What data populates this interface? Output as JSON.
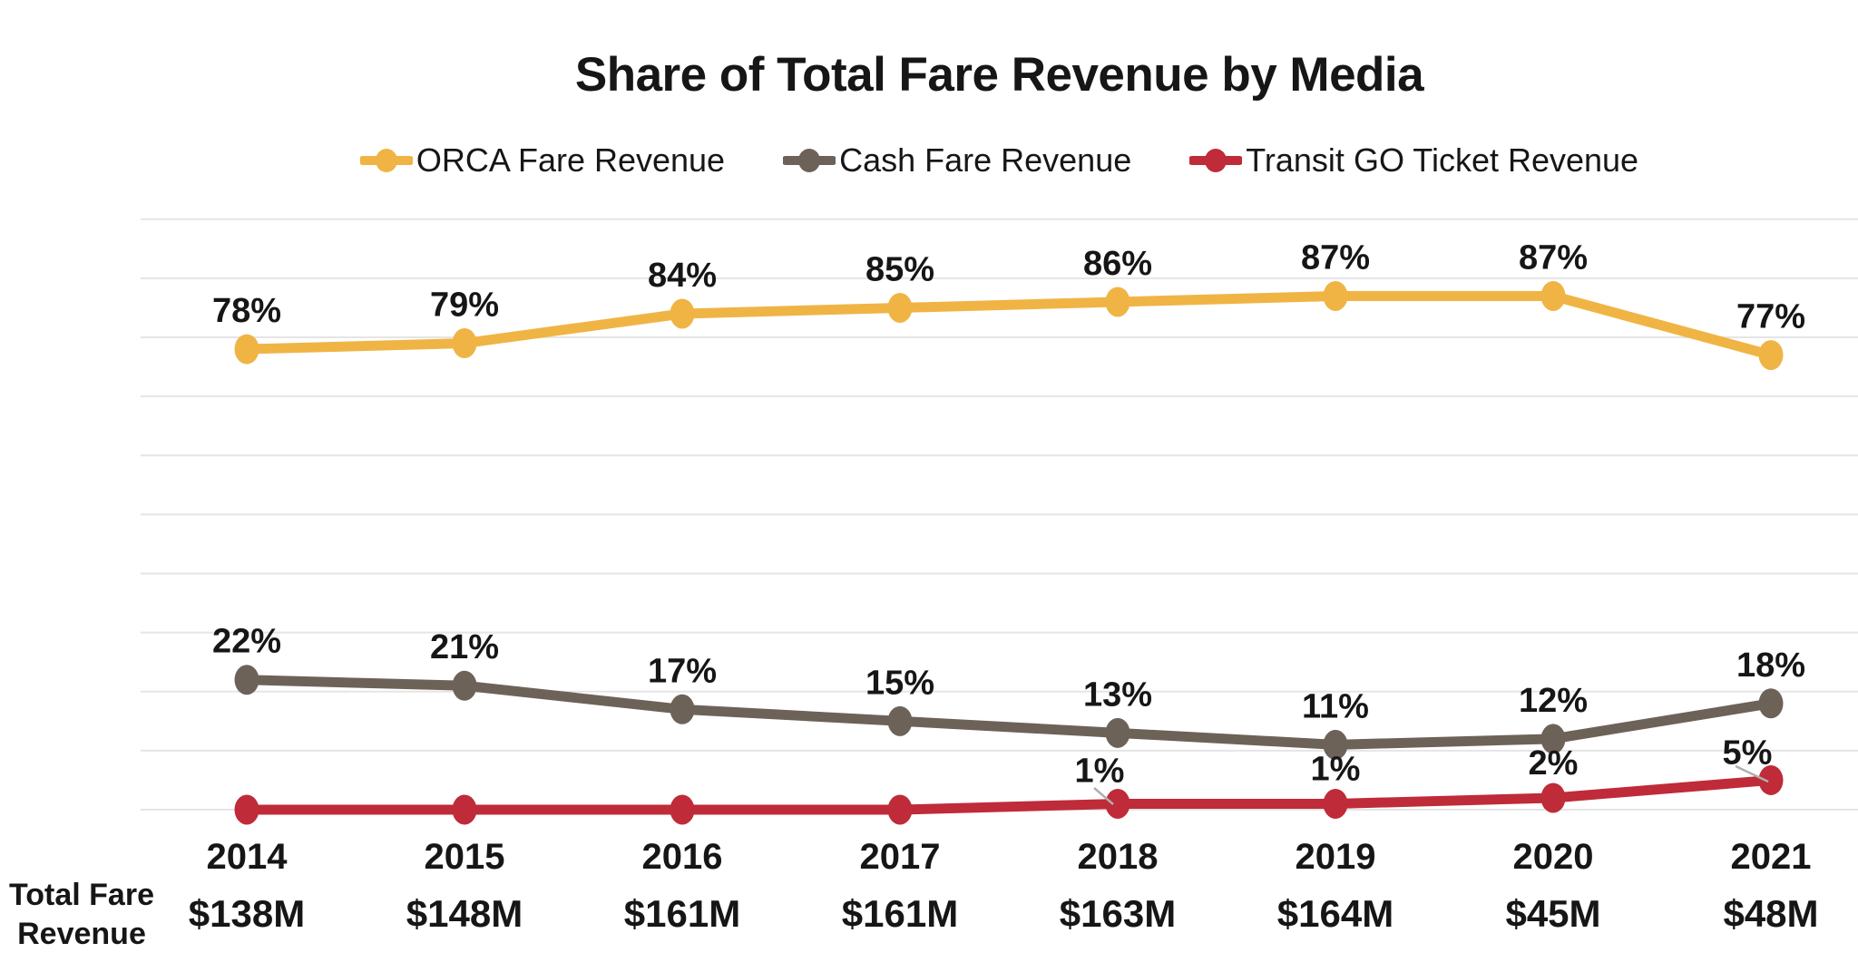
{
  "title": "Share of Total Fare Revenue by Media",
  "chart_data": {
    "type": "line",
    "title": "Share of Total Fare Revenue by Media",
    "categories": [
      "2014",
      "2015",
      "2016",
      "2017",
      "2018",
      "2019",
      "2020",
      "2021"
    ],
    "series": [
      {
        "name": "ORCA Fare Revenue",
        "color": "#F0B445",
        "values": [
          78,
          79,
          84,
          85,
          86,
          87,
          87,
          77
        ],
        "point_labels": [
          "78%",
          "79%",
          "84%",
          "85%",
          "86%",
          "87%",
          "87%",
          "77%"
        ]
      },
      {
        "name": "Cash Fare Revenue",
        "color": "#6C6258",
        "values": [
          22,
          21,
          17,
          15,
          13,
          11,
          12,
          18
        ],
        "point_labels": [
          "22%",
          "21%",
          "17%",
          "15%",
          "13%",
          "11%",
          "12%",
          "18%"
        ]
      },
      {
        "name": "Transit GO Ticket Revenue",
        "color": "#BF2B38",
        "values": [
          0,
          0,
          0,
          0,
          1,
          1,
          2,
          5
        ],
        "point_labels": [
          null,
          null,
          null,
          null,
          "1%",
          "1%",
          "2%",
          "5%"
        ]
      }
    ],
    "ylim": [
      0,
      100
    ],
    "gridline_step_percent": 10,
    "grid": "horizontal only, no y-axis tick labels",
    "legend_position": "top"
  },
  "totals": {
    "row_label": [
      "Total Fare",
      "Revenue"
    ],
    "values": [
      "$138M",
      "$148M",
      "$161M",
      "$161M",
      "$163M",
      "$164M",
      "$45M",
      "$48M"
    ]
  },
  "colors": {
    "grid": "#E5E5E5",
    "text": "#161616",
    "leader_line": "#AFAFAF",
    "background": "#FFFFFF"
  }
}
